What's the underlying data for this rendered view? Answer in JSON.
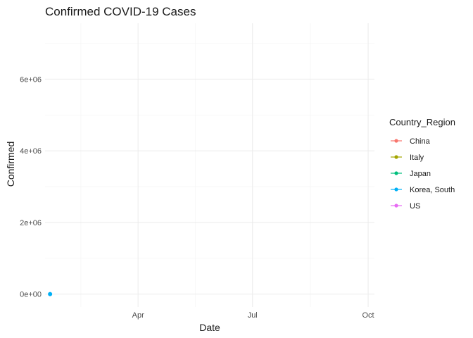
{
  "chart_data": {
    "type": "line",
    "title": "Confirmed COVID-19 Cases",
    "xlabel": "Date",
    "ylabel": "Confirmed",
    "x_ticks": [
      {
        "label": "Apr",
        "date": "2020-04-01"
      },
      {
        "label": "Jul",
        "date": "2020-07-01"
      },
      {
        "label": "Oct",
        "date": "2020-10-01"
      }
    ],
    "y_ticks": [
      {
        "label": "0e+00",
        "value": 0
      },
      {
        "label": "2e+06",
        "value": 2000000
      },
      {
        "label": "4e+06",
        "value": 4000000
      },
      {
        "label": "6e+06",
        "value": 6000000
      }
    ],
    "xlim": [
      "2020-01-18",
      "2020-10-06"
    ],
    "ylim": [
      -360000,
      7560000
    ],
    "grid": true,
    "legend": {
      "title": "Country_Region",
      "placement": "right",
      "entries": [
        {
          "name": "China",
          "color": "#F8766D"
        },
        {
          "name": "Italy",
          "color": "#A3A500"
        },
        {
          "name": "Japan",
          "color": "#00BF7D"
        },
        {
          "name": "Korea, South",
          "color": "#00B0F6"
        },
        {
          "name": "US",
          "color": "#E76BF3"
        }
      ]
    },
    "series": [
      {
        "name": "Korea, South",
        "color": "#00B0F6",
        "points": [
          {
            "x": "2020-01-22",
            "y": 1
          }
        ]
      }
    ]
  }
}
